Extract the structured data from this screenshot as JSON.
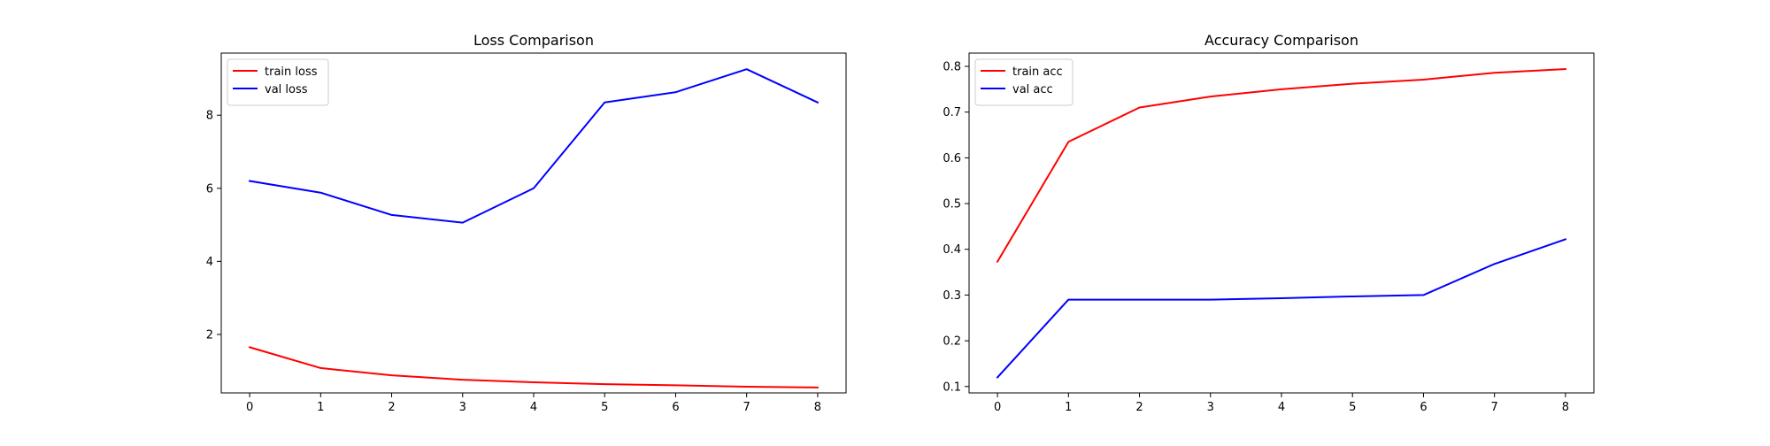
{
  "chart_data": [
    {
      "type": "line",
      "title": "Loss Comparison",
      "xlabel": "",
      "ylabel": "",
      "x": [
        0,
        1,
        2,
        3,
        4,
        5,
        6,
        7,
        8
      ],
      "xlim": [
        -0.4,
        8.4
      ],
      "ylim": [
        0.4,
        9.7
      ],
      "xticks": [
        0,
        1,
        2,
        3,
        4,
        5,
        6,
        7,
        8
      ],
      "yticks": [
        2,
        4,
        6,
        8
      ],
      "grid": false,
      "legend_position": "top-left",
      "series": [
        {
          "name": "train loss",
          "color": "#ff0000",
          "values": [
            1.65,
            1.08,
            0.88,
            0.76,
            0.69,
            0.64,
            0.61,
            0.57,
            0.55
          ]
        },
        {
          "name": "val loss",
          "color": "#0000ff",
          "values": [
            6.2,
            5.88,
            5.27,
            5.06,
            6.0,
            8.35,
            8.63,
            9.26,
            8.35
          ]
        }
      ]
    },
    {
      "type": "line",
      "title": "Accuracy Comparison",
      "xlabel": "",
      "ylabel": "",
      "x": [
        0,
        1,
        2,
        3,
        4,
        5,
        6,
        7,
        8
      ],
      "xlim": [
        -0.4,
        8.4
      ],
      "ylim": [
        0.086,
        0.829
      ],
      "xticks": [
        0,
        1,
        2,
        3,
        4,
        5,
        6,
        7,
        8
      ],
      "yticks": [
        0.1,
        0.2,
        0.3,
        0.4,
        0.5,
        0.6,
        0.7,
        0.8
      ],
      "grid": false,
      "legend_position": "top-left",
      "series": [
        {
          "name": "train acc",
          "color": "#ff0000",
          "values": [
            0.373,
            0.635,
            0.71,
            0.734,
            0.75,
            0.762,
            0.771,
            0.786,
            0.794
          ]
        },
        {
          "name": "val acc",
          "color": "#0000ff",
          "values": [
            0.12,
            0.29,
            0.29,
            0.29,
            0.293,
            0.297,
            0.3,
            0.368,
            0.422
          ]
        }
      ]
    }
  ]
}
